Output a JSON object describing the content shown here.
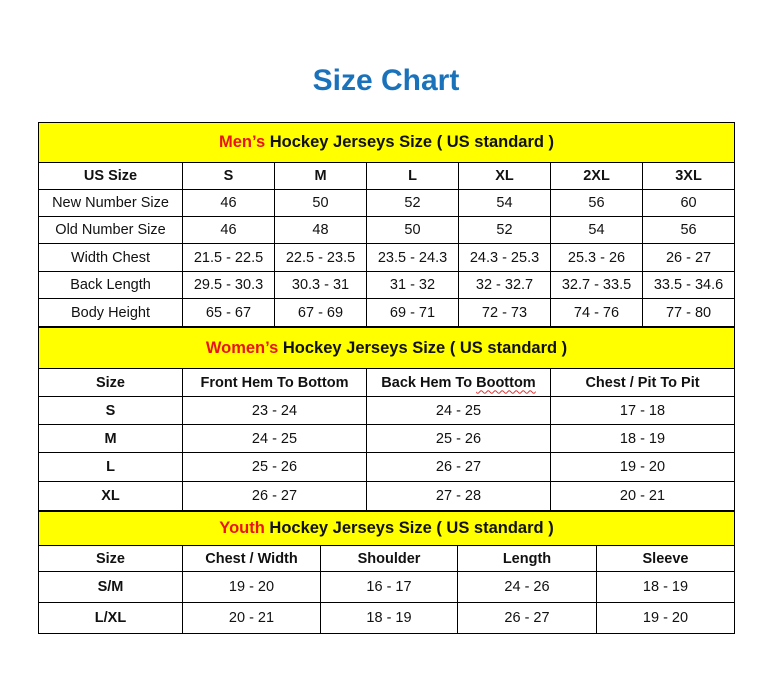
{
  "title": "Size Chart",
  "men": {
    "prefix": "Men’s",
    "heading": " Hockey Jerseys Size ( US standard )",
    "columns": [
      "US Size",
      "S",
      "M",
      "L",
      "XL",
      "2XL",
      "3XL"
    ],
    "rows": [
      [
        "New Number Size",
        "46",
        "50",
        "52",
        "54",
        "56",
        "60"
      ],
      [
        "Old Number Size",
        "46",
        "48",
        "50",
        "52",
        "54",
        "56"
      ],
      [
        "Width Chest",
        "21.5 - 22.5",
        "22.5 - 23.5",
        "23.5 - 24.3",
        "24.3 - 25.3",
        "25.3 - 26",
        "26 - 27"
      ],
      [
        "Back Length",
        "29.5 - 30.3",
        "30.3 - 31",
        "31 - 32",
        "32 - 32.7",
        "32.7 - 33.5",
        "33.5 - 34.6"
      ],
      [
        "Body Height",
        "65 - 67",
        "67 - 69",
        "69 - 71",
        "72 - 73",
        "74 - 76",
        "77 - 80"
      ]
    ]
  },
  "women": {
    "prefix": "Women’s",
    "heading": " Hockey Jerseys Size ( US standard )",
    "columns": [
      "Size",
      "Front Hem To Bottom",
      "Back Hem To Boottom",
      "Chest / Pit To Pit"
    ],
    "rows": [
      [
        "S",
        "23 - 24",
        "24 - 25",
        "17 - 18"
      ],
      [
        "M",
        "24 - 25",
        "25 - 26",
        "18 - 19"
      ],
      [
        "L",
        "25 - 26",
        "26 - 27",
        "19 - 20"
      ],
      [
        "XL",
        "26 - 27",
        "27 - 28",
        "20 - 21"
      ]
    ]
  },
  "youth": {
    "prefix": "Youth",
    "heading": " Hockey Jerseys Size ( US standard )",
    "columns": [
      "Size",
      "Chest / Width",
      "Shoulder",
      "Length",
      "Sleeve"
    ],
    "rows": [
      [
        "S/M",
        "19 - 20",
        "16 - 17",
        "24 - 26",
        "18 - 19"
      ],
      [
        "L/XL",
        "20 - 21",
        "18 - 19",
        "26 - 27",
        "19 - 20"
      ]
    ]
  }
}
